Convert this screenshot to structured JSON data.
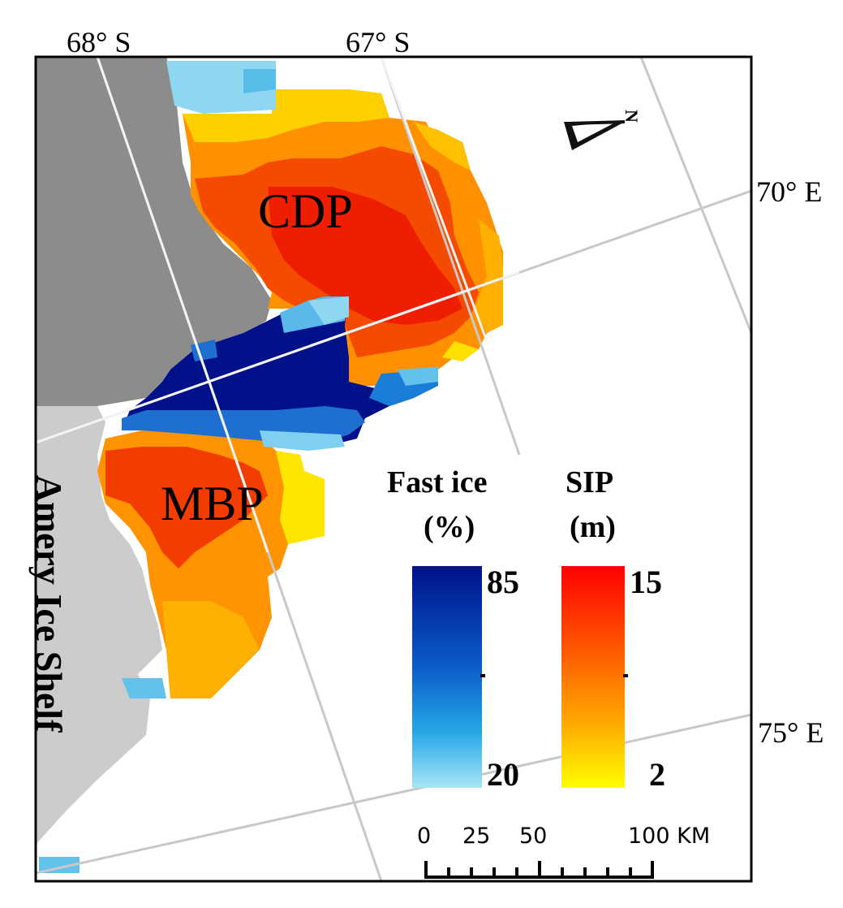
{
  "graticule": {
    "latitudes": [
      "68° S",
      "67° S"
    ],
    "longitudes": [
      "70° E",
      "75° E"
    ]
  },
  "regions": {
    "cdp": "CDP",
    "mbp": "MBP",
    "ice_shelf": "Amery Ice Shelf"
  },
  "north_arrow": {
    "label": "N",
    "icon": "north-arrow-icon"
  },
  "legend": {
    "fast_ice": {
      "title_line1": "Fast ice",
      "title_line2": "(%)",
      "max": "85",
      "min": "20",
      "color_max": "#00118a",
      "color_min": "#a7e6f4"
    },
    "sip": {
      "title_line1": "SIP",
      "title_line2": "(m)",
      "max": "15",
      "min": "2",
      "color_max": "#ff0000",
      "color_min": "#ffff00"
    }
  },
  "scale_bar": {
    "labels": [
      "0",
      "25",
      "50",
      "100 KM"
    ]
  },
  "colors": {
    "land": "#8c8c8c",
    "ice_shelf": "#cccccc",
    "graticule": "#c8c8c8",
    "frame": "#000000"
  }
}
